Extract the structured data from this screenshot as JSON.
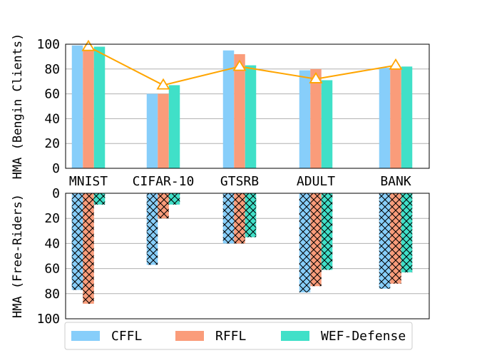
{
  "chart_data": [
    {
      "type": "bar",
      "panel": "top",
      "ylabel": "HMA (Bengin Clients)",
      "ylim": [
        0,
        100
      ],
      "yticks": [
        "0",
        "20",
        "40",
        "60",
        "80",
        "100"
      ],
      "grid": "horizontal",
      "categories": [
        "MNIST",
        "CIFAR-10",
        "GTSRB",
        "ADULT",
        "BANK"
      ],
      "series": [
        {
          "name": "CFFL",
          "color": "#87cefa",
          "values": [
            99,
            60,
            95,
            79,
            81
          ]
        },
        {
          "name": "RFFL",
          "color": "#fa9c7a",
          "values": [
            96,
            60,
            92,
            80,
            80
          ]
        },
        {
          "name": "WEF-Defense",
          "color": "#40e0c8",
          "values": [
            98,
            67,
            83,
            71,
            82
          ]
        }
      ],
      "line": {
        "color": "#ffa500",
        "marker": "triangle",
        "values": [
          98,
          67,
          82,
          72,
          83
        ]
      }
    },
    {
      "type": "bar",
      "panel": "bottom",
      "ylabel": "HMA (Free-Riders)",
      "ylim": [
        100,
        0
      ],
      "yticks": [
        "0",
        "20",
        "40",
        "60",
        "80",
        "100"
      ],
      "grid": "horizontal",
      "hatch": "crosshatch",
      "categories": [
        "MNIST",
        "CIFAR-10",
        "GTSRB",
        "ADULT",
        "BANK"
      ],
      "series": [
        {
          "name": "CFFL",
          "color": "#87cefa",
          "values": [
            77,
            57,
            40,
            79,
            76
          ]
        },
        {
          "name": "RFFL",
          "color": "#fa9c7a",
          "values": [
            88,
            20,
            40,
            74,
            72
          ]
        },
        {
          "name": "WEF-Defense",
          "color": "#40e0c8",
          "values": [
            9,
            9,
            35,
            61,
            63
          ]
        }
      ]
    }
  ],
  "legend": {
    "position": "bottom",
    "items": [
      {
        "label": "CFFL",
        "color": "#87cefa"
      },
      {
        "label": "RFFL",
        "color": "#fa9c7a"
      },
      {
        "label": "WEF-Defense",
        "color": "#40e0c8"
      }
    ]
  }
}
